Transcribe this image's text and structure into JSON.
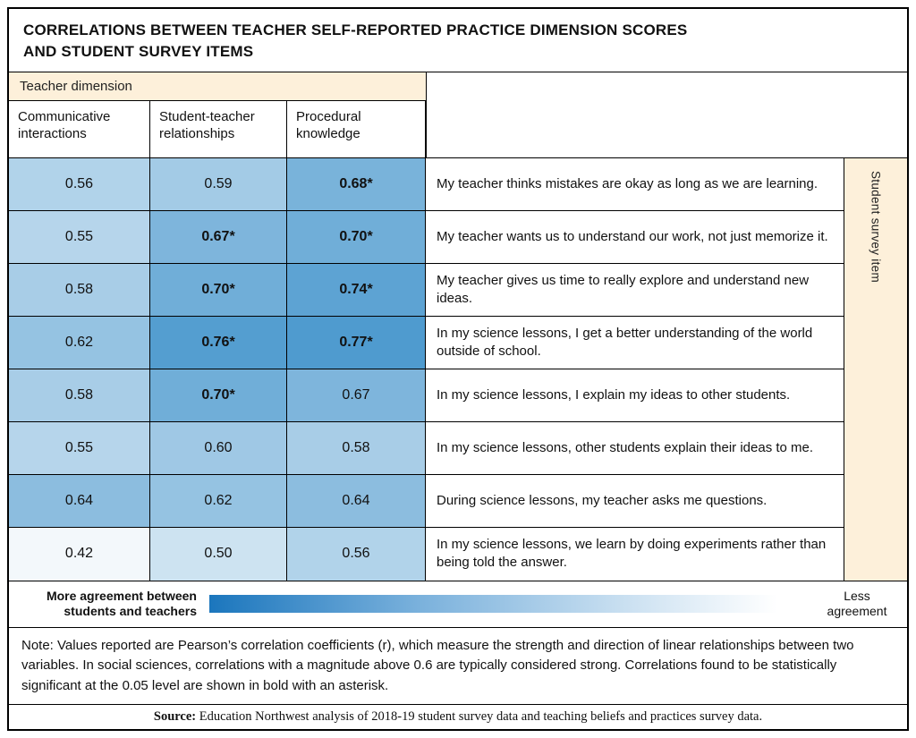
{
  "title": "CORRELATIONS BETWEEN TEACHER SELF-REPORTED PRACTICE DIMENSION SCORES\nAND STUDENT SURVEY ITEMS",
  "chart_data": {
    "type": "heatmap",
    "column_group_label": "Teacher dimension",
    "row_group_label": "Student survey item",
    "columns": [
      "Communicative interactions",
      "Student-teacher relationships",
      "Procedural knowledge"
    ],
    "rows": [
      {
        "labels": [
          "0.56",
          "0.59",
          "0.68*"
        ],
        "values": [
          0.56,
          0.59,
          0.68
        ],
        "item": "My teacher thinks mistakes are okay as long as we are learning."
      },
      {
        "labels": [
          "0.55",
          "0.67*",
          "0.70*"
        ],
        "values": [
          0.55,
          0.67,
          0.7
        ],
        "item": "My teacher wants us to understand our work, not just memorize it."
      },
      {
        "labels": [
          "0.58",
          "0.70*",
          "0.74*"
        ],
        "values": [
          0.58,
          0.7,
          0.74
        ],
        "item": "My teacher gives us time to really explore and understand new ideas."
      },
      {
        "labels": [
          "0.62",
          "0.76*",
          "0.77*"
        ],
        "values": [
          0.62,
          0.76,
          0.77
        ],
        "item": "In my science lessons, I get a better understanding of the world outside of school."
      },
      {
        "labels": [
          "0.58",
          "0.70*",
          "0.67"
        ],
        "values": [
          0.58,
          0.7,
          0.67
        ],
        "item": "In my science lessons, I explain my ideas to other students."
      },
      {
        "labels": [
          "0.55",
          "0.60",
          "0.58"
        ],
        "values": [
          0.55,
          0.6,
          0.58
        ],
        "item": "In my science lessons, other students explain their ideas to me."
      },
      {
        "labels": [
          "0.64",
          "0.62",
          "0.64"
        ],
        "values": [
          0.64,
          0.62,
          0.64
        ],
        "item": "During science lessons, my teacher asks me questions."
      },
      {
        "labels": [
          "0.42",
          "0.50",
          "0.56"
        ],
        "values": [
          0.42,
          0.5,
          0.56
        ],
        "item": "In my science lessons, we learn by doing experiments rather than being told the answer."
      }
    ],
    "color_scale": {
      "min_value": 0.4,
      "max_value": 0.8,
      "min_color": "#fcfdfe",
      "max_color": "#4193cb"
    },
    "legend": {
      "left_label": "More agreement between\nstudents and teachers",
      "right_label": "Less\nagreement",
      "gradient_left_color": "#1b76bd",
      "gradient_right_color": "#ffffff"
    }
  },
  "note": "Note: Values reported are Pearson’s correlation coefficients (r), which measure the strength and direction of linear relationships between two variables. In social sciences, correlations with a magnitude above 0.6 are typically considered strong. Correlations found to be statistically significant at the 0.05 level are shown in bold with an asterisk.",
  "source_prefix": "Source:",
  "source_text": "Education Northwest analysis of 2018-19 student survey data and teaching beliefs and practices survey data.",
  "colors": {
    "header_cream": "#fdf0da",
    "border": "#000000"
  }
}
